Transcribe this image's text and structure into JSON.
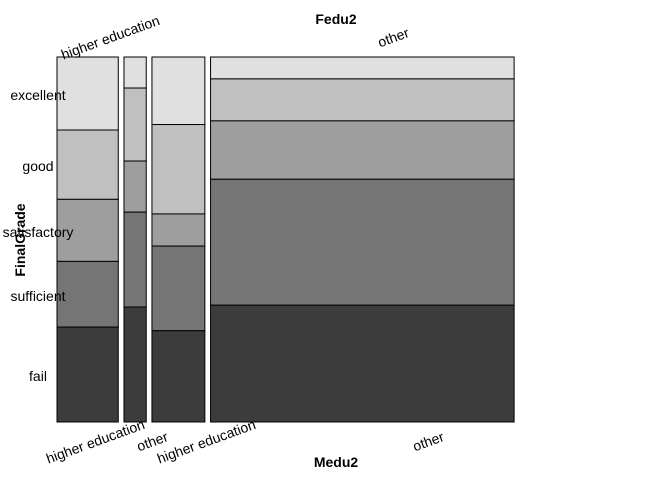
{
  "chart_data": {
    "type": "mosaic",
    "title_top": "Fedu2",
    "title_bottom": "Medu2",
    "title_left": "FinalGrade",
    "row_labels": [
      "excellent",
      "good",
      "satisfactory",
      "sufficient",
      "fail"
    ],
    "shade_colors": [
      "#e0e0e0",
      "#c0c0c0",
      "#9e9e9e",
      "#757575",
      "#3c3c3c"
    ],
    "columns": [
      {
        "fedu2": "higher education",
        "medu2": "higher education",
        "share": 0.11,
        "proportions": [
          0.2,
          0.19,
          0.17,
          0.18,
          0.26
        ]
      },
      {
        "fedu2": "higher education",
        "medu2": "other",
        "share": 0.04,
        "proportions": [
          0.085,
          0.2,
          0.14,
          0.26,
          0.315
        ]
      },
      {
        "fedu2": "other",
        "medu2": "higher education",
        "share": 0.095,
        "proportions": [
          0.185,
          0.245,
          0.088,
          0.232,
          0.25
        ]
      },
      {
        "fedu2": "other",
        "medu2": "other",
        "share": 0.545,
        "proportions": [
          0.06,
          0.115,
          0.16,
          0.345,
          0.32
        ]
      }
    ],
    "fedu2_labels": [
      "higher education",
      "other"
    ],
    "medu2_labels": [
      "higher education",
      "other",
      "higher education",
      "other"
    ]
  }
}
